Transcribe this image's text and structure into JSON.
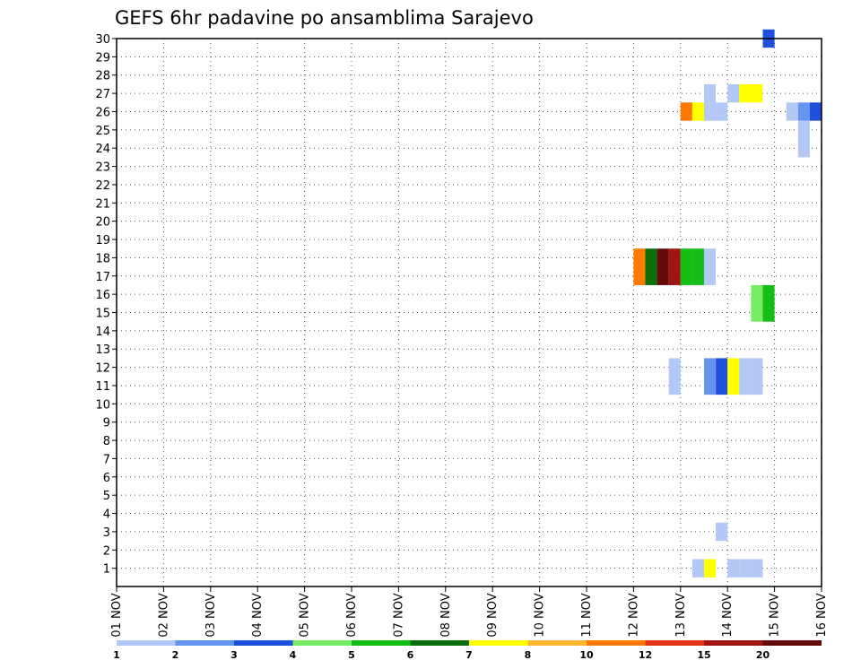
{
  "chart_data": {
    "type": "heatmap",
    "title": "GEFS 6hr padavine po ansamblima Sarajevo",
    "xlabel": "",
    "ylabel": "",
    "x_tick_labels": [
      "01 NOV",
      "02 NOV",
      "03 NOV",
      "04 NOV",
      "05 NOV",
      "06 NOV",
      "07 NOV",
      "08 NOV",
      "09 NOV",
      "10 NOV",
      "11 NOV",
      "12 NOV",
      "13 NOV",
      "14 NOV",
      "15 NOV",
      "16 NOV"
    ],
    "x_range_days": [
      1,
      16
    ],
    "y_tick_labels": [
      "1",
      "2",
      "3",
      "4",
      "5",
      "6",
      "7",
      "8",
      "9",
      "10",
      "11",
      "12",
      "13",
      "14",
      "15",
      "16",
      "17",
      "18",
      "19",
      "20",
      "21",
      "22",
      "23",
      "24",
      "25",
      "26",
      "27",
      "28",
      "29",
      "30"
    ],
    "y_range": [
      0,
      30
    ],
    "grid": "dotted",
    "colorbar": {
      "labels": [
        "1",
        "2",
        "3",
        "4",
        "5",
        "6",
        "7",
        "8",
        "10",
        "12",
        "15",
        "20"
      ],
      "colors": [
        "#b4c8f5",
        "#6496f0",
        "#1e50dc",
        "#78eb64",
        "#14be14",
        "#0a6e0a",
        "#ffff00",
        "#ffb432",
        "#ff7800",
        "#e13214",
        "#a01414",
        "#640a0a"
      ]
    },
    "cells": [
      {
        "day": 14.75,
        "members": [
          30
        ],
        "level": 3
      },
      {
        "day": 13.5,
        "members": [
          27
        ],
        "level": 1
      },
      {
        "day": 14.0,
        "members": [
          27
        ],
        "level": 1
      },
      {
        "day": 14.25,
        "members": [
          27
        ],
        "level": 7
      },
      {
        "day": 14.5,
        "members": [
          27
        ],
        "level": 7
      },
      {
        "day": 13.0,
        "members": [
          26
        ],
        "level": 9
      },
      {
        "day": 13.25,
        "members": [
          26
        ],
        "level": 7
      },
      {
        "day": 13.5,
        "members": [
          26
        ],
        "level": 1
      },
      {
        "day": 13.75,
        "members": [
          26
        ],
        "level": 1
      },
      {
        "day": 15.25,
        "members": [
          26
        ],
        "level": 1
      },
      {
        "day": 15.5,
        "members": [
          26
        ],
        "level": 2
      },
      {
        "day": 15.75,
        "members": [
          26
        ],
        "level": 3
      },
      {
        "day": 15.5,
        "members": [
          24,
          25
        ],
        "level": 1
      },
      {
        "day": 12.0,
        "members": [
          17,
          18
        ],
        "level": 9
      },
      {
        "day": 12.25,
        "members": [
          17,
          18
        ],
        "level": 6
      },
      {
        "day": 12.5,
        "members": [
          17,
          18
        ],
        "level": 12
      },
      {
        "day": 12.75,
        "members": [
          17,
          18
        ],
        "level": 11
      },
      {
        "day": 13.0,
        "members": [
          17,
          18
        ],
        "level": 5
      },
      {
        "day": 13.25,
        "members": [
          17,
          18
        ],
        "level": 5
      },
      {
        "day": 13.5,
        "members": [
          17,
          18
        ],
        "level": 1
      },
      {
        "day": 14.5,
        "members": [
          15,
          16
        ],
        "level": 4
      },
      {
        "day": 14.75,
        "members": [
          15,
          16
        ],
        "level": 5
      },
      {
        "day": 12.75,
        "members": [
          11,
          12
        ],
        "level": 1
      },
      {
        "day": 13.5,
        "members": [
          11,
          12
        ],
        "level": 2
      },
      {
        "day": 13.75,
        "members": [
          11,
          12
        ],
        "level": 3
      },
      {
        "day": 14.0,
        "members": [
          11,
          12
        ],
        "level": 7
      },
      {
        "day": 14.25,
        "members": [
          11,
          12
        ],
        "level": 1
      },
      {
        "day": 14.5,
        "members": [
          11,
          12
        ],
        "level": 1
      },
      {
        "day": 13.75,
        "members": [
          3
        ],
        "level": 1
      },
      {
        "day": 13.25,
        "members": [
          1
        ],
        "level": 1
      },
      {
        "day": 13.5,
        "members": [
          1
        ],
        "level": 7
      },
      {
        "day": 14.0,
        "members": [
          1
        ],
        "level": 1
      },
      {
        "day": 14.25,
        "members": [
          1
        ],
        "level": 1
      },
      {
        "day": 14.5,
        "members": [
          1
        ],
        "level": 1
      }
    ]
  }
}
